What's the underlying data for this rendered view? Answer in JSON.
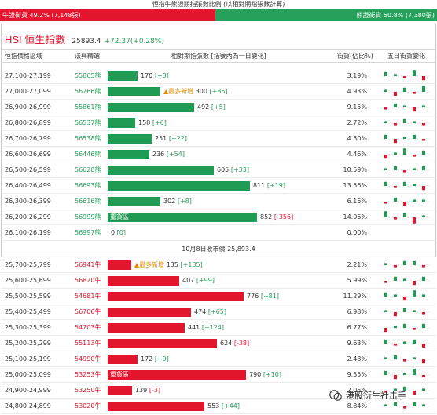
{
  "header": {
    "title": "恒指牛熊證期指張數比例 (以相對期指張數計算)",
    "bull_text": "牛證街貨 49.2% (7,148張)",
    "bear_text": "熊證街貨 50.8% (7,380張)",
    "bull_pct": 49.2,
    "bear_pct": 50.8
  },
  "index": {
    "name": "HSI 恒生指數",
    "price": "25893.4",
    "change": "+72.37(+0.28%)"
  },
  "columns": {
    "range": "恒指價格區域",
    "code": "法興精選",
    "bar": "相對期指張數 [括號內為一日變化]",
    "pct": "街貨(佔比%)",
    "trend": "五日街貨變化"
  },
  "close_label": "10月8日收市價 25,893.4",
  "colors": {
    "bull": "#e3162e",
    "bear": "#1f9b54",
    "hot": "#e58b00"
  },
  "max_value": 852,
  "bear_rows": [
    {
      "range": "27,100-27,199",
      "code": "55865熊",
      "value": 170,
      "delta": "[+3]",
      "pct": "3.19%",
      "tag": "",
      "note": "",
      "trend": [
        2,
        1,
        -1,
        3,
        -2
      ]
    },
    {
      "range": "27,000-27,099",
      "code": "56266熊",
      "value": 300,
      "delta": "[+85]",
      "pct": "4.93%",
      "tag": "",
      "note": "最多新增",
      "trend": [
        1,
        -2,
        2,
        -1,
        3
      ]
    },
    {
      "range": "26,900-26,999",
      "code": "55861熊",
      "value": 492,
      "delta": "[+5]",
      "pct": "9.15%",
      "tag": "",
      "note": "",
      "trend": [
        -1,
        2,
        1,
        -2,
        1
      ]
    },
    {
      "range": "26,800-26,899",
      "code": "56537熊",
      "value": 158,
      "delta": "[+6]",
      "pct": "2.72%",
      "tag": "",
      "note": "",
      "trend": [
        1,
        -1,
        2,
        1,
        -1
      ]
    },
    {
      "range": "26,700-26,799",
      "code": "56538熊",
      "value": 251,
      "delta": "[+22]",
      "pct": "4.50%",
      "tag": "",
      "note": "",
      "trend": [
        2,
        -2,
        1,
        2,
        -1
      ]
    },
    {
      "range": "26,600-26,699",
      "code": "56446熊",
      "value": 236,
      "delta": "[+54]",
      "pct": "4.46%",
      "tag": "",
      "note": "",
      "trend": [
        -2,
        1,
        3,
        -1,
        2
      ]
    },
    {
      "range": "26,500-26,599",
      "code": "56620熊",
      "value": 605,
      "delta": "[+33]",
      "pct": "10.59%",
      "tag": "",
      "note": "",
      "trend": [
        1,
        2,
        -1,
        1,
        2
      ]
    },
    {
      "range": "26,400-26,499",
      "code": "56693熊",
      "value": 811,
      "delta": "[+19]",
      "pct": "13.56%",
      "tag": "",
      "note": "",
      "trend": [
        2,
        -1,
        2,
        1,
        -2
      ]
    },
    {
      "range": "26,300-26,399",
      "code": "56616熊",
      "value": 302,
      "delta": "[+8]",
      "pct": "6.16%",
      "tag": "",
      "note": "",
      "trend": [
        -1,
        2,
        -2,
        1,
        1
      ]
    },
    {
      "range": "26,200-26,299",
      "code": "56999熊",
      "value": 852,
      "delta": "[-356]",
      "pct": "14.06%",
      "tag": "重貨區",
      "note": "",
      "trend": [
        3,
        -1,
        2,
        -3,
        1
      ]
    },
    {
      "range": "26,100-26,199",
      "code": "56997熊",
      "value": 0,
      "delta": "[0]",
      "pct": "0.00%",
      "tag": "",
      "note": "",
      "trend": []
    }
  ],
  "bull_rows": [
    {
      "range": "25,700-25,799",
      "code": "56941牛",
      "value": 135,
      "delta": "[+135]",
      "pct": "2.21%",
      "tag": "",
      "note": "最多新增",
      "trend": [
        1,
        -1,
        2,
        2,
        -1
      ]
    },
    {
      "range": "25,600-25,699",
      "code": "56820牛",
      "value": 407,
      "delta": "[+99]",
      "pct": "5.99%",
      "tag": "",
      "note": "",
      "trend": [
        -1,
        2,
        1,
        -2,
        2
      ]
    },
    {
      "range": "25,500-25,599",
      "code": "54681牛",
      "value": 776,
      "delta": "[+81]",
      "pct": "11.29%",
      "tag": "",
      "note": "",
      "trend": [
        2,
        1,
        -2,
        3,
        1
      ]
    },
    {
      "range": "25,400-25,499",
      "code": "56706牛",
      "value": 474,
      "delta": "[+65]",
      "pct": "6.98%",
      "tag": "",
      "note": "",
      "trend": [
        1,
        -2,
        2,
        1,
        -1
      ]
    },
    {
      "range": "25,300-25,399",
      "code": "54703牛",
      "value": 441,
      "delta": "[+124]",
      "pct": "6.77%",
      "tag": "",
      "note": "",
      "trend": [
        -2,
        1,
        2,
        -1,
        2
      ]
    },
    {
      "range": "25,200-25,299",
      "code": "55113牛",
      "value": 624,
      "delta": "[-38]",
      "pct": "9.63%",
      "tag": "",
      "note": "",
      "trend": [
        2,
        -1,
        1,
        2,
        -2
      ]
    },
    {
      "range": "25,100-25,199",
      "code": "54990牛",
      "value": 172,
      "delta": "[+9]",
      "pct": "2.48%",
      "tag": "",
      "note": "",
      "trend": [
        1,
        2,
        -1,
        1,
        -2
      ]
    },
    {
      "range": "25,000-25,099",
      "code": "53253牛",
      "value": 790,
      "delta": "[+10]",
      "pct": "9.55%",
      "tag": "重貨區",
      "note": "",
      "trend": [
        2,
        -2,
        1,
        3,
        -1
      ]
    },
    {
      "range": "24,900-24,999",
      "code": "53250牛",
      "value": 139,
      "delta": "[-3]",
      "pct": "2.05%",
      "tag": "",
      "note": "",
      "trend": [
        -1,
        1,
        2,
        -2,
        1
      ]
    },
    {
      "range": "24,800-24,899",
      "code": "53020牛",
      "value": 553,
      "delta": "[+44]",
      "pct": "8.84%",
      "tag": "",
      "note": "",
      "trend": [
        1,
        2,
        -1,
        2,
        1
      ]
    }
  ],
  "watermark": "港股衍生社击手"
}
